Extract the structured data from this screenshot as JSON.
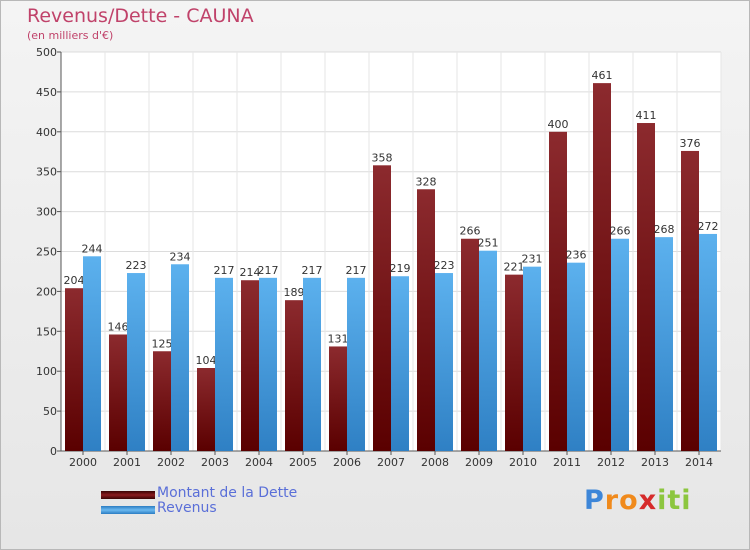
{
  "chart_data": {
    "type": "bar",
    "title": "Revenus/Dette - CAUNA",
    "subtitle": "(en milliers d'€)",
    "categories": [
      "2000",
      "2001",
      "2002",
      "2003",
      "2004",
      "2005",
      "2006",
      "2007",
      "2008",
      "2009",
      "2010",
      "2011",
      "2012",
      "2013",
      "2014"
    ],
    "series": [
      {
        "name": "Montant de la Dette",
        "color": "#7a1518",
        "values": [
          204,
          146,
          125,
          104,
          214,
          189,
          131,
          358,
          328,
          266,
          221,
          400,
          461,
          411,
          376
        ]
      },
      {
        "name": "Revenus",
        "color": "#4aa3e6",
        "values": [
          244,
          223,
          234,
          217,
          217,
          217,
          217,
          219,
          223,
          251,
          231,
          236,
          266,
          268,
          272
        ]
      }
    ],
    "data_labels": [
      [
        "204",
        "146",
        "125",
        "104",
        "214",
        "189",
        "131",
        "358",
        "328",
        "266",
        "221",
        "400",
        "461",
        "411",
        "376"
      ],
      [
        "244",
        "223",
        "234",
        "217",
        "217",
        "217",
        "217",
        "219",
        "223",
        "251",
        "231",
        "236",
        "266",
        "268",
        "272"
      ]
    ],
    "ylim": [
      0,
      500
    ],
    "yticks": [
      0,
      50,
      100,
      150,
      200,
      250,
      300,
      350,
      400,
      450,
      500
    ],
    "grid": true,
    "legend_position": "bottom-left"
  },
  "logo": {
    "letters": [
      "P",
      "r",
      "o",
      "x",
      "i",
      "t",
      "i"
    ],
    "colors": [
      "#3d86d8",
      "#f08a1c",
      "#f08a1c",
      "#d62b2b",
      "#8cc63f",
      "#8cc63f",
      "#8cc63f"
    ]
  }
}
